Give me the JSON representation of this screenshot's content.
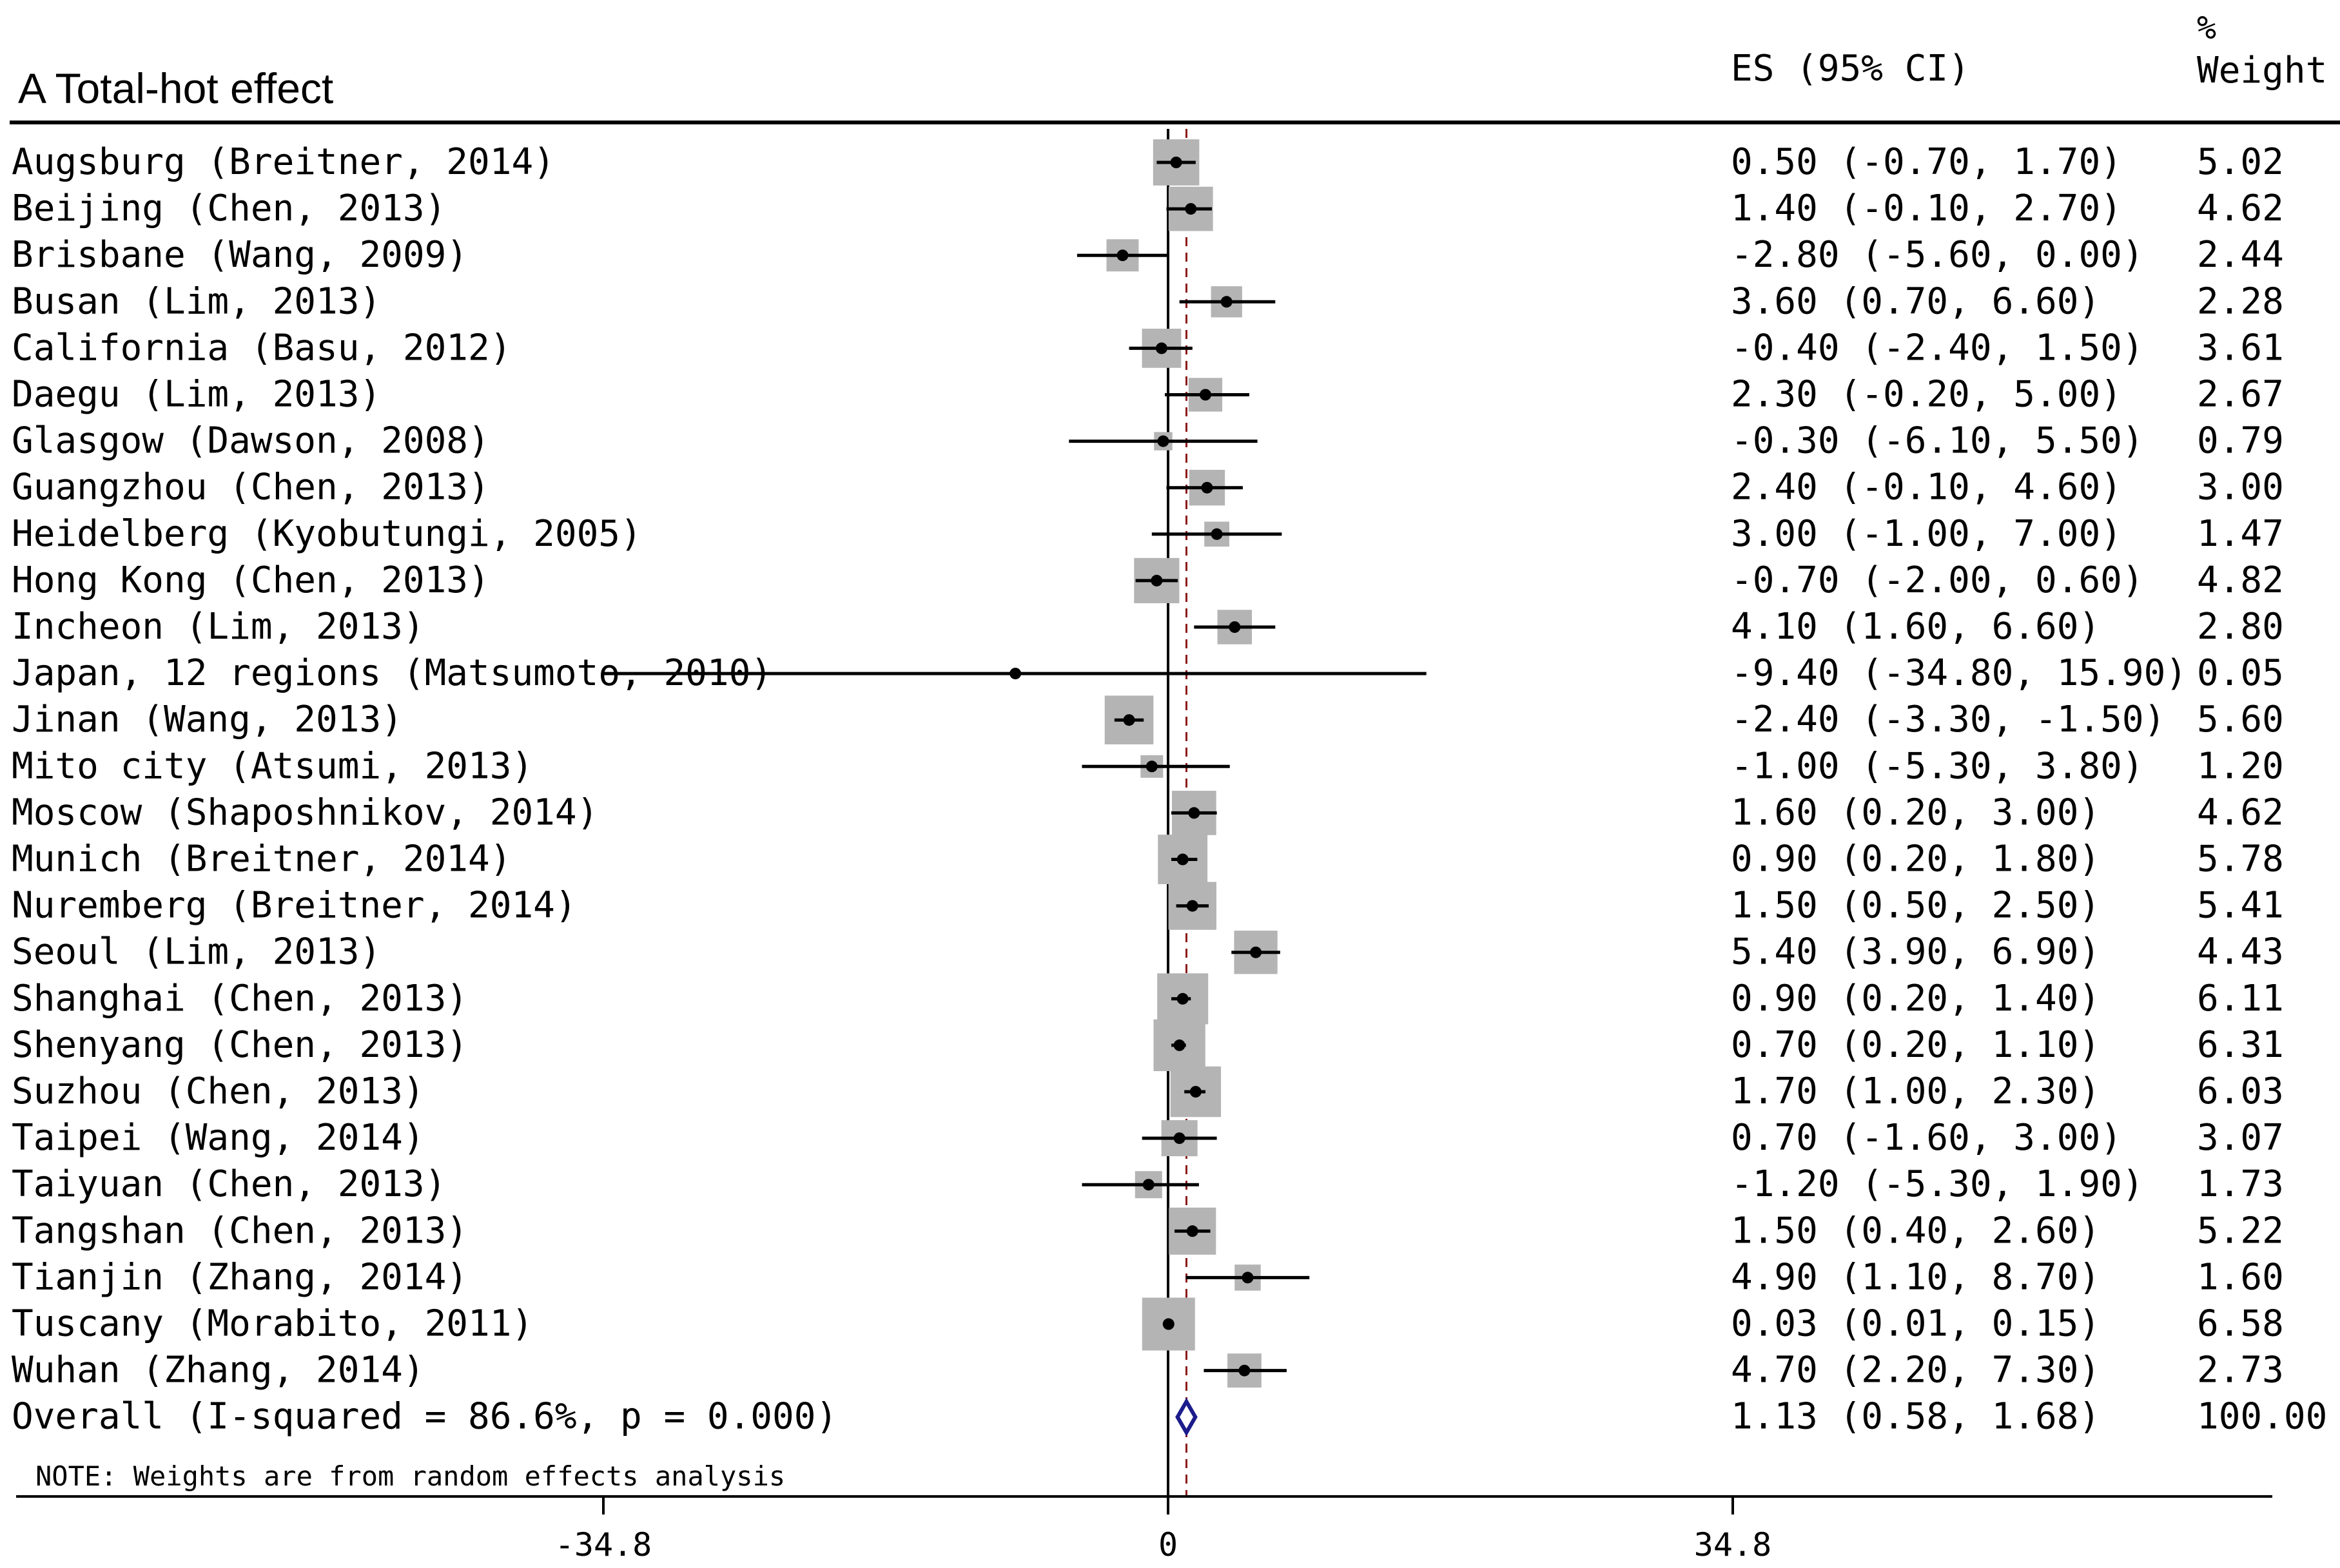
{
  "chart_data": {
    "type": "forest",
    "title": "A Total-hot effect",
    "col_es_header": "ES (95% CI)",
    "col_weight_header_line1": "%",
    "col_weight_header_line2": "Weight",
    "note": "NOTE: Weights are from random effects analysis",
    "xlim": [
      -34.8,
      34.8
    ],
    "ticks": [
      {
        "value": -34.8,
        "label": "-34.8"
      },
      {
        "value": 0,
        "label": "0"
      },
      {
        "value": 34.8,
        "label": "34.8"
      }
    ],
    "studies": [
      {
        "label": "Augsburg  (Breitner, 2014)",
        "es": 0.5,
        "lo": -0.7,
        "hi": 1.7,
        "es_text": "0.50 (-0.70, 1.70)",
        "weight": 5.02,
        "weight_text": "5.02"
      },
      {
        "label": "Beijing (Chen, 2013)",
        "es": 1.4,
        "lo": -0.1,
        "hi": 2.7,
        "es_text": "1.40 (-0.10, 2.70)",
        "weight": 4.62,
        "weight_text": "4.62"
      },
      {
        "label": "Brisbane (Wang, 2009)",
        "es": -2.8,
        "lo": -5.6,
        "hi": 0.0,
        "es_text": "-2.80 (-5.60, 0.00)",
        "weight": 2.44,
        "weight_text": "2.44"
      },
      {
        "label": "Busan (Lim, 2013)",
        "es": 3.6,
        "lo": 0.7,
        "hi": 6.6,
        "es_text": "3.60 (0.70, 6.60)",
        "weight": 2.28,
        "weight_text": "2.28"
      },
      {
        "label": "California (Basu, 2012)",
        "es": -0.4,
        "lo": -2.4,
        "hi": 1.5,
        "es_text": "-0.40 (-2.40, 1.50)",
        "weight": 3.61,
        "weight_text": "3.61"
      },
      {
        "label": "Daegu (Lim, 2013)",
        "es": 2.3,
        "lo": -0.2,
        "hi": 5.0,
        "es_text": "2.30 (-0.20, 5.00)",
        "weight": 2.67,
        "weight_text": "2.67"
      },
      {
        "label": "Glasgow (Dawson, 2008)",
        "es": -0.3,
        "lo": -6.1,
        "hi": 5.5,
        "es_text": "-0.30 (-6.10, 5.50)",
        "weight": 0.79,
        "weight_text": "0.79"
      },
      {
        "label": "Guangzhou (Chen, 2013)",
        "es": 2.4,
        "lo": -0.1,
        "hi": 4.6,
        "es_text": "2.40 (-0.10, 4.60)",
        "weight": 3.0,
        "weight_text": "3.00"
      },
      {
        "label": "Heidelberg  (Kyobutungi, 2005)",
        "es": 3.0,
        "lo": -1.0,
        "hi": 7.0,
        "es_text": "3.00 (-1.00, 7.00)",
        "weight": 1.47,
        "weight_text": "1.47"
      },
      {
        "label": "Hong Kong (Chen, 2013)",
        "es": -0.7,
        "lo": -2.0,
        "hi": 0.6,
        "es_text": "-0.70 (-2.00, 0.60)",
        "weight": 4.82,
        "weight_text": "4.82"
      },
      {
        "label": "Incheon (Lim, 2013)",
        "es": 4.1,
        "lo": 1.6,
        "hi": 6.6,
        "es_text": "4.10 (1.60, 6.60)",
        "weight": 2.8,
        "weight_text": "2.80"
      },
      {
        "label": "Japan, 12 regions (Matsumoto, 2010)",
        "es": -9.4,
        "lo": -34.8,
        "hi": 15.9,
        "es_text": "-9.40 (-34.80, 15.90)",
        "weight": 0.05,
        "weight_text": "0.05"
      },
      {
        "label": "Jinan (Wang, 2013)",
        "es": -2.4,
        "lo": -3.3,
        "hi": -1.5,
        "es_text": "-2.40 (-3.30, -1.50)",
        "weight": 5.6,
        "weight_text": "5.60"
      },
      {
        "label": "Mito city (Atsumi, 2013)",
        "es": -1.0,
        "lo": -5.3,
        "hi": 3.8,
        "es_text": "-1.00 (-5.30, 3.80)",
        "weight": 1.2,
        "weight_text": "1.20"
      },
      {
        "label": "Moscow (Shaposhnikov, 2014)",
        "es": 1.6,
        "lo": 0.2,
        "hi": 3.0,
        "es_text": "1.60 (0.20, 3.00)",
        "weight": 4.62,
        "weight_text": "4.62"
      },
      {
        "label": "Munich (Breitner, 2014)",
        "es": 0.9,
        "lo": 0.2,
        "hi": 1.8,
        "es_text": "0.90 (0.20, 1.80)",
        "weight": 5.78,
        "weight_text": "5.78"
      },
      {
        "label": "Nuremberg (Breitner, 2014)",
        "es": 1.5,
        "lo": 0.5,
        "hi": 2.5,
        "es_text": "1.50 (0.50, 2.50)",
        "weight": 5.41,
        "weight_text": "5.41"
      },
      {
        "label": "Seoul (Lim, 2013)",
        "es": 5.4,
        "lo": 3.9,
        "hi": 6.9,
        "es_text": "5.40 (3.90, 6.90)",
        "weight": 4.43,
        "weight_text": "4.43"
      },
      {
        "label": "Shanghai (Chen, 2013)",
        "es": 0.9,
        "lo": 0.2,
        "hi": 1.4,
        "es_text": "0.90 (0.20, 1.40)",
        "weight": 6.11,
        "weight_text": "6.11"
      },
      {
        "label": "Shenyang (Chen, 2013)",
        "es": 0.7,
        "lo": 0.2,
        "hi": 1.1,
        "es_text": "0.70 (0.20, 1.10)",
        "weight": 6.31,
        "weight_text": "6.31"
      },
      {
        "label": "Suzhou (Chen, 2013)",
        "es": 1.7,
        "lo": 1.0,
        "hi": 2.3,
        "es_text": "1.70 (1.00, 2.30)",
        "weight": 6.03,
        "weight_text": "6.03"
      },
      {
        "label": "Taipei (Wang, 2014)",
        "es": 0.7,
        "lo": -1.6,
        "hi": 3.0,
        "es_text": "0.70 (-1.60, 3.00)",
        "weight": 3.07,
        "weight_text": "3.07"
      },
      {
        "label": "Taiyuan (Chen, 2013)",
        "es": -1.2,
        "lo": -5.3,
        "hi": 1.9,
        "es_text": "-1.20 (-5.30, 1.90)",
        "weight": 1.73,
        "weight_text": "1.73"
      },
      {
        "label": "Tangshan (Chen, 2013)",
        "es": 1.5,
        "lo": 0.4,
        "hi": 2.6,
        "es_text": "1.50 (0.40, 2.60)",
        "weight": 5.22,
        "weight_text": "5.22"
      },
      {
        "label": "Tianjin (Zhang, 2014)",
        "es": 4.9,
        "lo": 1.1,
        "hi": 8.7,
        "es_text": "4.90 (1.10, 8.70)",
        "weight": 1.6,
        "weight_text": "1.60"
      },
      {
        "label": "Tuscany (Morabito, 2011)",
        "es": 0.03,
        "lo": 0.01,
        "hi": 0.15,
        "es_text": "0.03 (0.01, 0.15)",
        "weight": 6.58,
        "weight_text": "6.58"
      },
      {
        "label": "Wuhan (Zhang, 2014)",
        "es": 4.7,
        "lo": 2.2,
        "hi": 7.3,
        "es_text": "4.70 (2.20, 7.30)",
        "weight": 2.73,
        "weight_text": "2.73"
      }
    ],
    "overall": {
      "label": "Overall  (I-squared = 86.6%, p = 0.000)",
      "es": 1.13,
      "lo": 0.58,
      "hi": 1.68,
      "es_text": "1.13 (0.58, 1.68)",
      "weight_text": "100.00"
    },
    "colors": {
      "box": "#b4b4b4",
      "line": "#000000",
      "diamond": "#1c1c8c",
      "overall_line": "#8b1a1a"
    }
  }
}
